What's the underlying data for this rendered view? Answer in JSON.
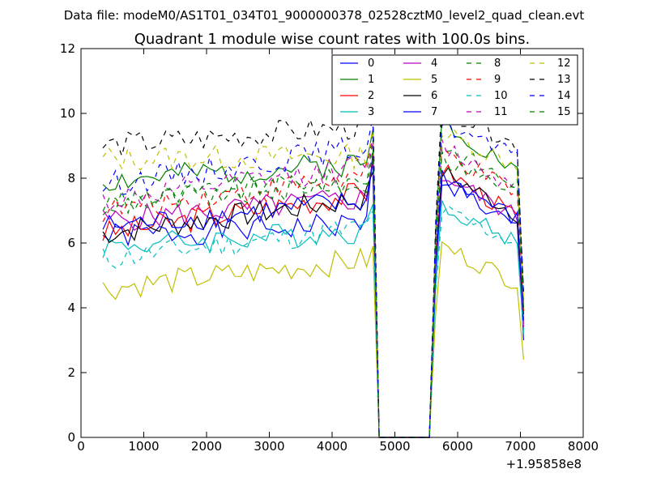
{
  "figure": {
    "suptitle": "Data file: modeM0/AS1T01_034T01_9000000378_02528cztM0_level2_quad_clean.evt",
    "title": "Quadrant 1 module wise count rates with 100.0s bins.",
    "x_offset_label": "+1.95858e8"
  },
  "chart_data": {
    "type": "line",
    "title": "Quadrant 1 module wise count rates with 100.0s bins.",
    "xlabel": "",
    "ylabel": "",
    "xlim": [
      0,
      8000
    ],
    "ylim": [
      0,
      12
    ],
    "x_ticks": [
      0,
      1000,
      2000,
      3000,
      4000,
      5000,
      6000,
      7000,
      8000
    ],
    "y_ticks": [
      0,
      2,
      4,
      6,
      8,
      10,
      12
    ],
    "x_tick_labels": [
      "0",
      "1000",
      "2000",
      "3000",
      "4000",
      "5000",
      "6000",
      "7000",
      "8000"
    ],
    "y_tick_labels": [
      "0",
      "2",
      "4",
      "6",
      "8",
      "10",
      "12"
    ],
    "x_offset": 195858000,
    "grid": false,
    "legend_position": "top-right",
    "legend_columns": 4,
    "x_start": 350,
    "x_step": 100,
    "gap_value": 0,
    "gap_from": 4750,
    "gap_to": 5550,
    "series": [
      {
        "name": "0",
        "color": "#0000ff",
        "dashed": false,
        "level_a": 6.2,
        "level_b": 6.6,
        "peak_a": 8.8,
        "post_peak": 8.0,
        "post_end": 6.4,
        "final": 3.0
      },
      {
        "name": "1",
        "color": "#008000",
        "dashed": false,
        "level_a": 7.9,
        "level_b": 8.5,
        "peak_a": 9.5,
        "post_peak": 9.8,
        "post_end": 8.2,
        "final": 4.0
      },
      {
        "name": "2",
        "color": "#ff0000",
        "dashed": false,
        "level_a": 6.3,
        "level_b": 7.6,
        "peak_a": 8.6,
        "post_peak": 8.3,
        "post_end": 6.8,
        "final": 3.5
      },
      {
        "name": "3",
        "color": "#00bfbf",
        "dashed": false,
        "level_a": 5.9,
        "level_b": 6.4,
        "peak_a": 7.2,
        "post_peak": 7.2,
        "post_end": 6.0,
        "final": 3.3
      },
      {
        "name": "4",
        "color": "#bf00bf",
        "dashed": false,
        "level_a": 6.7,
        "level_b": 7.4,
        "peak_a": 8.5,
        "post_peak": 8.1,
        "post_end": 6.8,
        "final": 3.4
      },
      {
        "name": "5",
        "color": "#bfbf00",
        "dashed": false,
        "level_a": 4.6,
        "level_b": 5.5,
        "peak_a": 5.9,
        "post_peak": 5.9,
        "post_end": 4.8,
        "final": 2.4
      },
      {
        "name": "6",
        "color": "#000000",
        "dashed": false,
        "level_a": 6.3,
        "level_b": 7.4,
        "peak_a": 8.2,
        "post_peak": 8.2,
        "post_end": 6.9,
        "final": 3.8
      },
      {
        "name": "7",
        "color": "#0000ff",
        "dashed": false,
        "level_a": 6.5,
        "level_b": 7.3,
        "peak_a": 8.5,
        "post_peak": 8.1,
        "post_end": 6.7,
        "final": 3.6
      },
      {
        "name": "8",
        "color": "#008000",
        "dashed": true,
        "level_a": 7.2,
        "level_b": 8.0,
        "peak_a": 9.2,
        "post_peak": 9.0,
        "post_end": 7.8,
        "final": 4.2
      },
      {
        "name": "9",
        "color": "#ff0000",
        "dashed": true,
        "level_a": 7.0,
        "level_b": 8.1,
        "peak_a": 9.0,
        "post_peak": 8.8,
        "post_end": 7.5,
        "final": 3.9
      },
      {
        "name": "10",
        "color": "#00bfbf",
        "dashed": true,
        "level_a": 5.5,
        "level_b": 6.5,
        "peak_a": 7.0,
        "post_peak": 7.0,
        "post_end": 6.0,
        "final": 3.2
      },
      {
        "name": "11",
        "color": "#bf00bf",
        "dashed": true,
        "level_a": 7.3,
        "level_b": 8.4,
        "peak_a": 9.3,
        "post_peak": 9.0,
        "post_end": 7.7,
        "final": 4.1
      },
      {
        "name": "12",
        "color": "#bfbf00",
        "dashed": true,
        "level_a": 8.6,
        "level_b": 8.7,
        "peak_a": 9.6,
        "post_peak": 9.4,
        "post_end": 8.4,
        "final": 4.3
      },
      {
        "name": "13",
        "color": "#000000",
        "dashed": true,
        "level_a": 9.0,
        "level_b": 9.6,
        "peak_a": 10.2,
        "post_peak": 10.2,
        "post_end": 9.0,
        "final": 4.5
      },
      {
        "name": "14",
        "color": "#0000ff",
        "dashed": true,
        "level_a": 7.8,
        "level_b": 9.0,
        "peak_a": 9.9,
        "post_peak": 9.7,
        "post_end": 8.6,
        "final": 4.4
      },
      {
        "name": "15",
        "color": "#008000",
        "dashed": true,
        "level_a": 7.2,
        "level_b": 7.9,
        "peak_a": 8.9,
        "post_peak": 8.6,
        "post_end": 7.5,
        "final": 4.0
      }
    ]
  }
}
